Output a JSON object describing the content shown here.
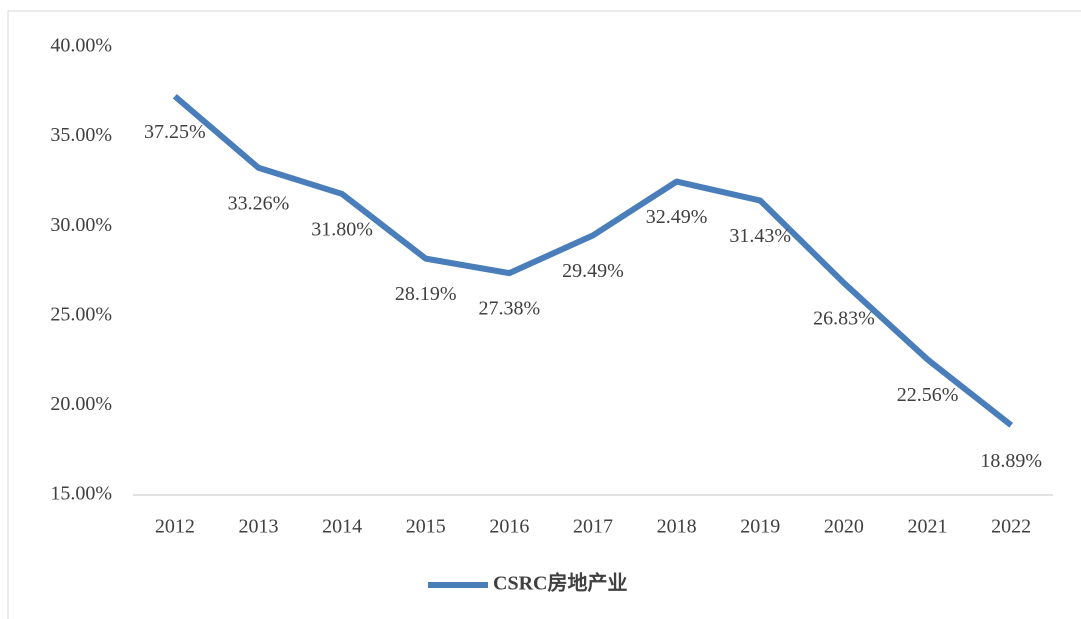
{
  "chart_data": {
    "type": "line",
    "categories": [
      "2012",
      "2013",
      "2014",
      "2015",
      "2016",
      "2017",
      "2018",
      "2019",
      "2020",
      "2021",
      "2022"
    ],
    "series": [
      {
        "name": "CSRC房地产业",
        "color": "#4a7ebb",
        "values": [
          37.25,
          33.26,
          31.8,
          28.19,
          27.38,
          29.49,
          32.49,
          31.43,
          26.83,
          22.56,
          18.89
        ],
        "value_labels": [
          "37.25%",
          "33.26%",
          "31.80%",
          "28.19%",
          "27.38%",
          "29.49%",
          "32.49%",
          "31.43%",
          "26.83%",
          "22.56%",
          "18.89%"
        ]
      }
    ],
    "ylim": [
      15,
      40
    ],
    "yticks": [
      {
        "value": 15,
        "label": "15.00%"
      },
      {
        "value": 20,
        "label": "20.00%"
      },
      {
        "value": 25,
        "label": "25.00%"
      },
      {
        "value": 30,
        "label": "30.00%"
      },
      {
        "value": 35,
        "label": "35.00%"
      },
      {
        "value": 40,
        "label": "40.00%"
      }
    ],
    "grid": false,
    "legend": "bottom"
  }
}
